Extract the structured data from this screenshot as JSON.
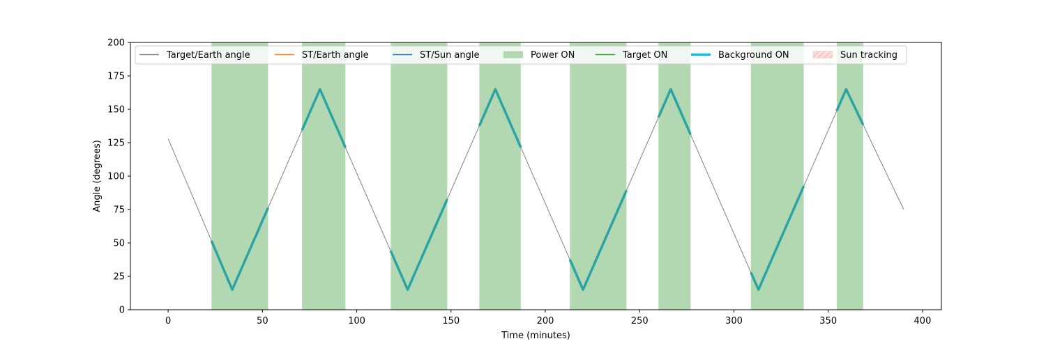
{
  "chart_data": {
    "type": "line",
    "title": "",
    "xlabel": "Time (minutes)",
    "ylabel": "Angle (degrees)",
    "xlim": [
      -20,
      410
    ],
    "ylim": [
      0,
      200
    ],
    "xticks": [
      0,
      50,
      100,
      150,
      200,
      250,
      300,
      350,
      400
    ],
    "yticks": [
      0,
      25,
      50,
      75,
      100,
      125,
      150,
      175,
      200
    ],
    "grid": false,
    "legend_position": "top",
    "legend": [
      {
        "label": "Target/Earth angle",
        "kind": "line",
        "color": "#808080"
      },
      {
        "label": "ST/Earth angle",
        "kind": "line",
        "color": "#ff7f0e"
      },
      {
        "label": "ST/Sun angle",
        "kind": "line",
        "color": "#1f77b4"
      },
      {
        "label": "Power ON",
        "kind": "patch",
        "color": "#b2d8b2"
      },
      {
        "label": "Target ON",
        "kind": "line",
        "color": "#2ca02c"
      },
      {
        "label": "Background ON",
        "kind": "thick-line",
        "color": "#17becf"
      },
      {
        "label": "Sun tracking",
        "kind": "hatch-patch",
        "color": "#ffdddd"
      }
    ],
    "series": [
      {
        "name": "Target/Earth angle",
        "color": "#808080",
        "x": [
          0,
          34,
          80.5,
          127,
          173.5,
          220,
          266.5,
          313,
          359.5,
          390
        ],
        "y": [
          128,
          15,
          165,
          15,
          165,
          15,
          165,
          15,
          165,
          75
        ]
      }
    ],
    "power_on_intervals": [
      [
        23,
        53
      ],
      [
        71,
        94
      ],
      [
        118,
        148
      ],
      [
        165,
        187
      ],
      [
        213,
        243
      ],
      [
        260,
        277
      ],
      [
        309,
        337
      ],
      [
        354.5,
        368.5
      ]
    ],
    "background_on_color": "#2ca3a3"
  }
}
